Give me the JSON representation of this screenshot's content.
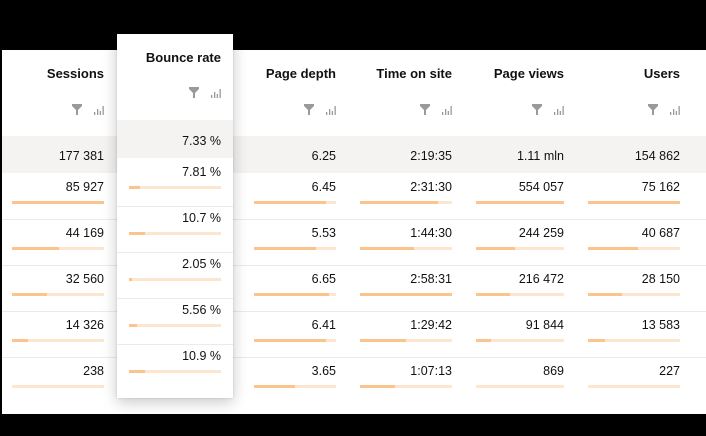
{
  "columns": [
    {
      "key": "sessions",
      "label": "Sessions"
    },
    {
      "key": "bounce_rate",
      "label": "Bounce rate"
    },
    {
      "key": "page_depth",
      "label": "Page depth"
    },
    {
      "key": "time_on_site",
      "label": "Time on site"
    },
    {
      "key": "page_views",
      "label": "Page views"
    },
    {
      "key": "users",
      "label": "Users"
    }
  ],
  "header_icons": [
    "filter-icon",
    "bar-chart-icon"
  ],
  "totals": {
    "sessions": "177 381",
    "bounce_rate": "7.33 %",
    "page_depth": "6.25",
    "time_on_site": "2:19:35",
    "page_views": "1.11 mln",
    "users": "154 862"
  },
  "rows": [
    {
      "sessions": "85 927",
      "bounce_rate": "7.81 %",
      "page_depth": "6.45",
      "time_on_site": "2:31:30",
      "page_views": "554 057",
      "users": "75 162",
      "bars": {
        "sessions": 100,
        "bounce_rate": 12,
        "page_depth": 88,
        "time_on_site": 85,
        "page_views": 100,
        "users": 100
      }
    },
    {
      "sessions": "44 169",
      "bounce_rate": "10.7 %",
      "page_depth": "5.53",
      "time_on_site": "1:44:30",
      "page_views": "244 259",
      "users": "40 687",
      "bars": {
        "sessions": 51,
        "bounce_rate": 17,
        "page_depth": 76,
        "time_on_site": 59,
        "page_views": 44,
        "users": 54
      }
    },
    {
      "sessions": "32 560",
      "bounce_rate": "2.05 %",
      "page_depth": "6.65",
      "time_on_site": "2:58:31",
      "page_views": "216 472",
      "users": "28 150",
      "bars": {
        "sessions": 38,
        "bounce_rate": 3,
        "page_depth": 91,
        "time_on_site": 100,
        "page_views": 39,
        "users": 37
      }
    },
    {
      "sessions": "14 326",
      "bounce_rate": "5.56 %",
      "page_depth": "6.41",
      "time_on_site": "1:29:42",
      "page_views": "91 844",
      "users": "13 583",
      "bars": {
        "sessions": 17,
        "bounce_rate": 9,
        "page_depth": 88,
        "time_on_site": 50,
        "page_views": 17,
        "users": 18
      }
    },
    {
      "sessions": "238",
      "bounce_rate": "10.9 %",
      "page_depth": "3.65",
      "time_on_site": "1:07:13",
      "page_views": "869",
      "users": "227",
      "bars": {
        "sessions": 0,
        "bounce_rate": 17,
        "page_depth": 50,
        "time_on_site": 38,
        "page_views": 0,
        "users": 0
      }
    }
  ],
  "colors": {
    "bar_fill": "#fbc48d",
    "bar_track": "#fde6cf",
    "totals_row_bg": "#f4f3f1",
    "icon_gray": "#9a9a9a"
  }
}
